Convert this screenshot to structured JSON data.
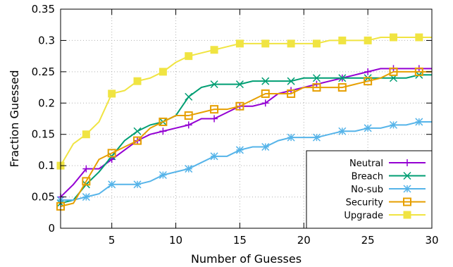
{
  "chart_data": {
    "type": "line",
    "xlabel": "Number of Guesses",
    "ylabel": "Fraction Guessed",
    "xlim": [
      1,
      30
    ],
    "ylim": [
      0,
      0.35
    ],
    "x_ticks": [
      5,
      10,
      15,
      20,
      25,
      30
    ],
    "y_ticks": [
      0,
      0.05,
      0.1,
      0.15,
      0.2,
      0.25,
      0.3,
      0.35
    ],
    "x_tick_labels": [
      "5",
      "10",
      "15",
      "20",
      "25",
      "30"
    ],
    "y_tick_labels": [
      "0",
      "0.05",
      "0.1",
      "0.15",
      "0.2",
      "0.25",
      "0.3",
      "0.35"
    ],
    "grid": true,
    "legend_position": "bottom-right",
    "x": [
      1,
      2,
      3,
      4,
      5,
      6,
      7,
      8,
      9,
      10,
      11,
      12,
      13,
      14,
      15,
      16,
      17,
      18,
      19,
      20,
      21,
      22,
      23,
      24,
      25,
      26,
      27,
      28,
      29,
      30
    ],
    "series": [
      {
        "name": "Neutral",
        "color": "#9400d3",
        "marker": "plus",
        "values": [
          0.05,
          0.07,
          0.095,
          0.095,
          0.11,
          0.125,
          0.14,
          0.15,
          0.155,
          0.16,
          0.165,
          0.175,
          0.175,
          0.185,
          0.195,
          0.195,
          0.2,
          0.215,
          0.22,
          0.225,
          0.23,
          0.235,
          0.24,
          0.245,
          0.25,
          0.255,
          0.255,
          0.255,
          0.255,
          0.255
        ]
      },
      {
        "name": "Breach",
        "color": "#009e73",
        "marker": "x",
        "values": [
          0.04,
          0.045,
          0.07,
          0.09,
          0.115,
          0.14,
          0.155,
          0.165,
          0.17,
          0.18,
          0.21,
          0.225,
          0.23,
          0.23,
          0.23,
          0.235,
          0.235,
          0.235,
          0.235,
          0.24,
          0.24,
          0.24,
          0.24,
          0.24,
          0.24,
          0.24,
          0.24,
          0.24,
          0.245,
          0.245
        ]
      },
      {
        "name": "No-sub",
        "color": "#56b4e9",
        "marker": "star",
        "values": [
          0.045,
          0.045,
          0.05,
          0.055,
          0.07,
          0.07,
          0.07,
          0.075,
          0.085,
          0.09,
          0.095,
          0.105,
          0.115,
          0.115,
          0.125,
          0.13,
          0.13,
          0.14,
          0.145,
          0.145,
          0.145,
          0.15,
          0.155,
          0.155,
          0.16,
          0.16,
          0.165,
          0.165,
          0.17,
          0.17
        ]
      },
      {
        "name": "Security",
        "color": "#e69f00",
        "marker": "open-square",
        "values": [
          0.035,
          0.04,
          0.075,
          0.11,
          0.12,
          0.13,
          0.14,
          0.16,
          0.17,
          0.18,
          0.18,
          0.185,
          0.19,
          0.19,
          0.195,
          0.205,
          0.215,
          0.215,
          0.215,
          0.225,
          0.225,
          0.225,
          0.225,
          0.23,
          0.235,
          0.24,
          0.25,
          0.25,
          0.25,
          0.25
        ]
      },
      {
        "name": "Upgrade",
        "color": "#f0e442",
        "marker": "filled-square",
        "values": [
          0.1,
          0.135,
          0.15,
          0.17,
          0.215,
          0.22,
          0.235,
          0.24,
          0.25,
          0.265,
          0.275,
          0.28,
          0.285,
          0.29,
          0.295,
          0.295,
          0.295,
          0.295,
          0.295,
          0.295,
          0.295,
          0.3,
          0.3,
          0.3,
          0.3,
          0.305,
          0.305,
          0.305,
          0.305,
          0.305
        ]
      }
    ]
  }
}
